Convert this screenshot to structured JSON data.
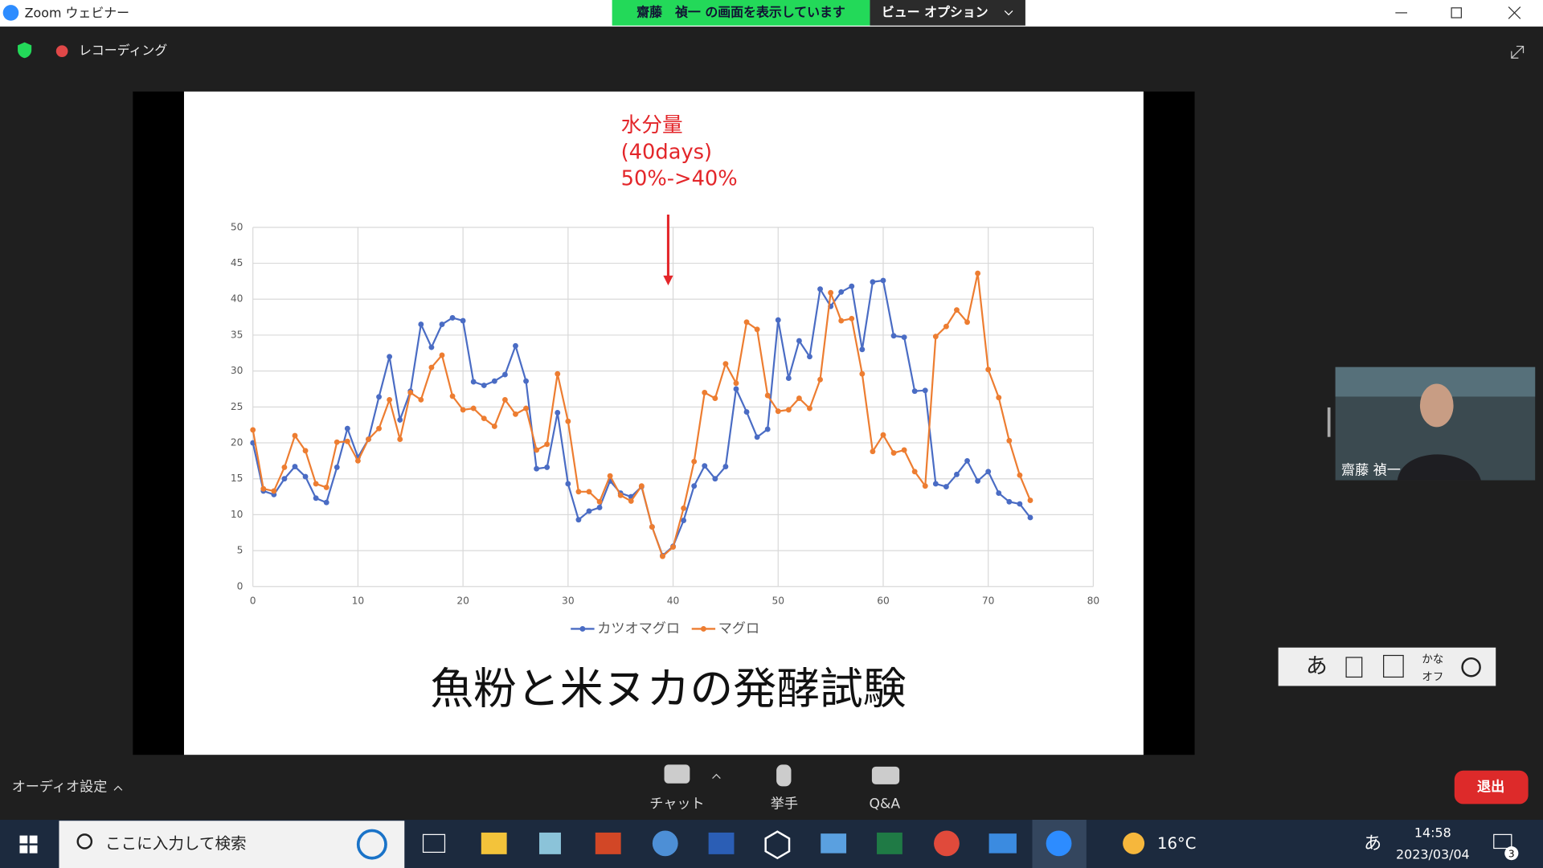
{
  "window": {
    "title": "Zoom ウェビナー"
  },
  "share_banner": {
    "text": "齋藤　禎一 の画面を表示しています",
    "options": "ビュー オプション"
  },
  "recording": "レコーディング",
  "annotation": [
    "水分量",
    "(40days)",
    "50%->40%"
  ],
  "slide_title": "魚粉と米ヌカの発酵試験",
  "participant": "齋藤 禎一",
  "ime": {
    "mode": "あ",
    "kana": "かな",
    "kana_state": "オフ"
  },
  "controls": {
    "audio": "オーディオ設定",
    "chat": "チャット",
    "raise_hand": "挙手",
    "qa": "Q&A",
    "leave": "退出"
  },
  "taskbar": {
    "search": "ここに入力して検索",
    "temperature": "16°C",
    "time": "14:58",
    "date": "2023/03/04",
    "ime": "あ",
    "notifications": "3"
  },
  "chart_data": {
    "type": "line",
    "x": [
      0,
      1,
      2,
      3,
      4,
      5,
      6,
      7,
      8,
      9,
      10,
      11,
      12,
      13,
      14,
      15,
      16,
      17,
      18,
      19,
      20,
      21,
      22,
      23,
      24,
      25,
      26,
      27,
      28,
      29,
      30,
      31,
      32,
      33,
      34,
      35,
      36,
      37,
      38,
      39,
      40,
      41,
      42,
      43,
      44,
      45,
      46,
      47,
      48,
      49,
      50,
      51,
      52,
      53,
      54,
      55,
      56,
      57,
      58,
      59,
      60,
      61,
      62,
      63,
      64,
      65,
      66,
      67,
      68,
      69,
      70,
      71,
      72,
      73,
      74
    ],
    "series": [
      {
        "name": "カツオマグロ",
        "color": "#4a6cc4",
        "values": [
          20,
          13.3,
          12.8,
          15,
          16.7,
          15.3,
          12.3,
          11.7,
          16.6,
          22,
          18,
          20.5,
          26.4,
          32,
          23.2,
          27.2,
          36.5,
          33.3,
          36.5,
          37.4,
          37,
          28.5,
          28,
          28.6,
          29.5,
          33.5,
          28.6,
          16.4,
          16.6,
          24.2,
          14.3,
          9.3,
          10.5,
          11,
          14.7,
          13,
          12.5,
          13.9,
          8.3,
          4.3,
          5.6,
          9.2,
          14,
          16.8,
          15,
          16.7,
          27.5,
          24.3,
          20.8,
          21.9,
          37.1,
          29,
          34.2,
          32,
          41.4,
          39,
          41,
          41.8,
          33,
          42.4,
          42.6,
          34.9,
          34.7,
          27.2,
          27.3,
          14.3,
          13.9,
          15.6,
          17.5,
          14.7,
          16,
          13,
          11.8,
          11.5,
          9.6
        ]
      },
      {
        "name": "マグロ",
        "color": "#ed7d31",
        "values": [
          21.8,
          13.6,
          13.3,
          16.6,
          21,
          18.9,
          14.3,
          13.8,
          20.1,
          20.2,
          17.5,
          20.5,
          22,
          26,
          20.5,
          27,
          26,
          30.5,
          32.2,
          26.5,
          24.6,
          24.8,
          23.4,
          22.3,
          26,
          24,
          24.8,
          19,
          19.8,
          29.6,
          23,
          13.2,
          13.2,
          11.8,
          15.4,
          12.7,
          11.9,
          14,
          8.3,
          4.2,
          5.5,
          10.9,
          17.4,
          27,
          26.2,
          31,
          28.3,
          36.8,
          35.8,
          26.6,
          24.4,
          24.6,
          26.2,
          24.8,
          28.8,
          40.9,
          37,
          37.3,
          29.6,
          18.8,
          21.1,
          18.6,
          19,
          16,
          14,
          34.8,
          36.2,
          38.5,
          36.8,
          43.6,
          30.2,
          26.3,
          20.3,
          15.5,
          12
        ]
      }
    ],
    "xlim": [
      0,
      80
    ],
    "xticks": [
      0,
      10,
      20,
      30,
      40,
      50,
      60,
      70,
      80
    ],
    "ylim": [
      0,
      50
    ],
    "yticks": [
      0,
      5,
      10,
      15,
      20,
      25,
      30,
      35,
      40,
      45,
      50
    ],
    "grid": true,
    "legend": "bottom"
  }
}
